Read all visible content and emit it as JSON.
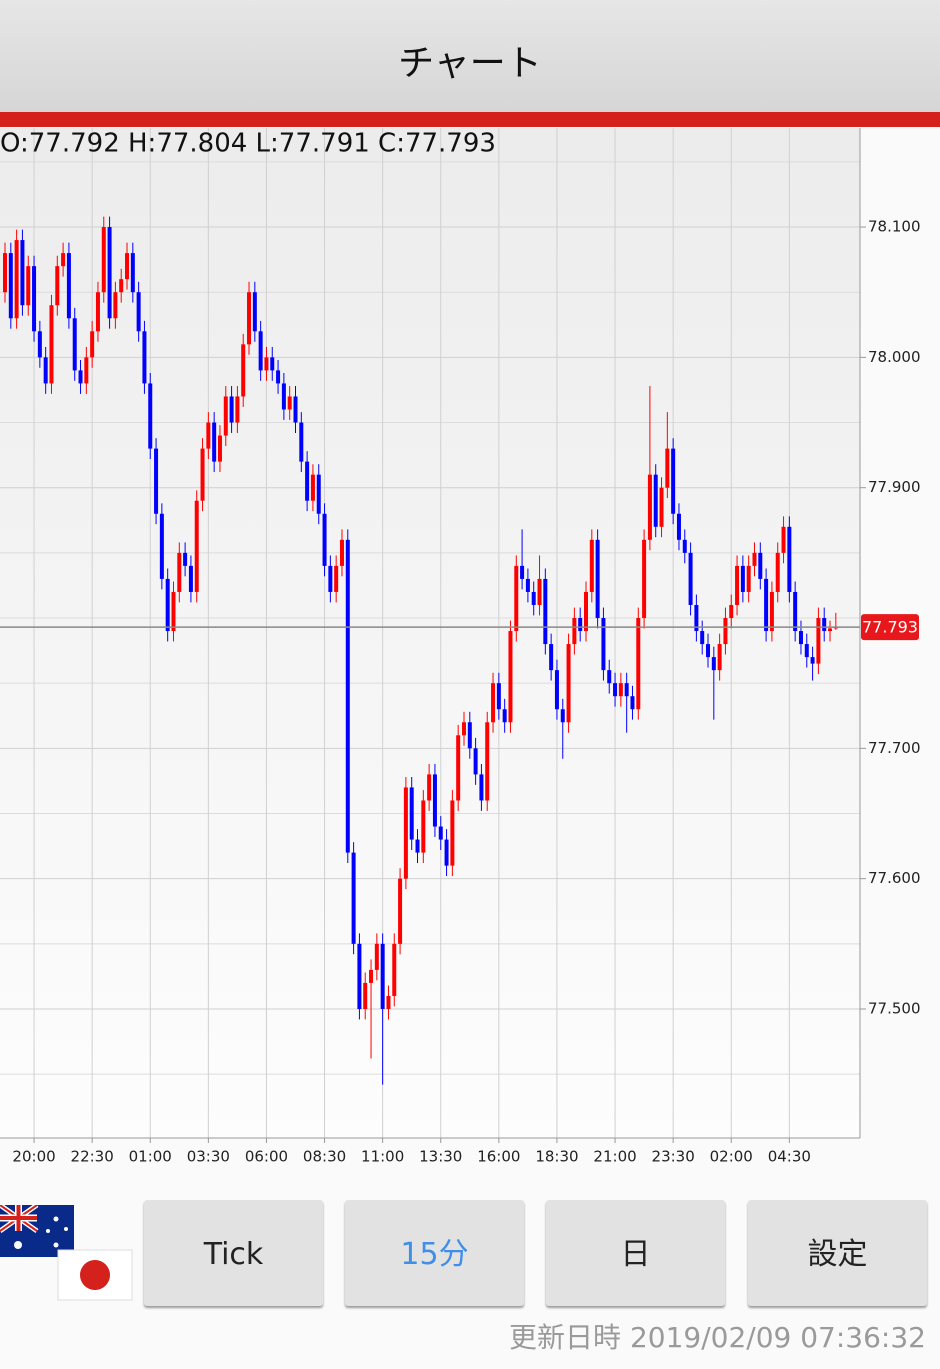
{
  "header": {
    "title": "チャート"
  },
  "chart_data": {
    "type": "candlestick",
    "ohlc_text": "O:77.792 H:77.804 L:77.791 C:77.793",
    "categories": [
      null,
      null,
      null,
      null,
      null,
      "20:00",
      null,
      null,
      null,
      null,
      null,
      null,
      null,
      null,
      null,
      "22:30",
      null,
      null,
      null,
      null,
      null,
      null,
      null,
      null,
      null,
      "01:00",
      null,
      null,
      null,
      null,
      null,
      null,
      null,
      null,
      null,
      "03:30",
      null,
      null,
      null,
      null,
      null,
      null,
      null,
      null,
      null,
      "06:00",
      null,
      null,
      null,
      null,
      null,
      null,
      null,
      null,
      null,
      "08:30",
      null,
      null,
      null,
      null,
      null,
      null,
      null,
      null,
      null,
      "11:00",
      null,
      null,
      null,
      null,
      null,
      null,
      null,
      null,
      null,
      "13:30",
      null,
      null,
      null,
      null,
      null,
      null,
      null,
      null,
      null,
      "16:00",
      null,
      null,
      null,
      null,
      null,
      null,
      null,
      null,
      null,
      "18:30",
      null,
      null,
      null,
      null,
      null,
      null,
      null,
      null,
      null,
      "21:00",
      null,
      null,
      null,
      null,
      null,
      null,
      null,
      null,
      null,
      "23:30",
      null,
      null,
      null,
      null,
      null,
      null,
      null,
      null,
      null,
      "02:00",
      null,
      null,
      null,
      null,
      null,
      null,
      null,
      null,
      null,
      "04:30",
      null,
      null,
      null,
      null,
      null,
      null,
      null,
      null
    ],
    "candles": [
      [
        78.05,
        78.088,
        78.042,
        78.08
      ],
      [
        78.08,
        78.088,
        78.022,
        78.03
      ],
      [
        78.03,
        78.098,
        78.022,
        78.09
      ],
      [
        78.09,
        78.098,
        78.032,
        78.04
      ],
      [
        78.04,
        78.078,
        78.032,
        78.07
      ],
      [
        78.07,
        78.078,
        78.012,
        78.02
      ],
      [
        78.02,
        78.028,
        77.992,
        78.0
      ],
      [
        78.0,
        78.008,
        77.972,
        77.98
      ],
      [
        77.98,
        78.048,
        77.972,
        78.04
      ],
      [
        78.04,
        78.078,
        78.032,
        78.07
      ],
      [
        78.07,
        78.088,
        78.062,
        78.08
      ],
      [
        78.08,
        78.088,
        78.022,
        78.03
      ],
      [
        78.03,
        78.038,
        77.982,
        77.99
      ],
      [
        77.99,
        77.998,
        77.972,
        77.98
      ],
      [
        77.98,
        78.008,
        77.972,
        78.0
      ],
      [
        78.0,
        78.028,
        77.992,
        78.02
      ],
      [
        78.02,
        78.058,
        78.012,
        78.05
      ],
      [
        78.05,
        78.108,
        78.042,
        78.1
      ],
      [
        78.1,
        78.108,
        78.022,
        78.03
      ],
      [
        78.03,
        78.058,
        78.022,
        78.05
      ],
      [
        78.05,
        78.068,
        78.042,
        78.06
      ],
      [
        78.06,
        78.088,
        78.052,
        78.08
      ],
      [
        78.08,
        78.088,
        78.042,
        78.05
      ],
      [
        78.05,
        78.058,
        78.012,
        78.02
      ],
      [
        78.02,
        78.028,
        77.972,
        77.98
      ],
      [
        77.98,
        77.988,
        77.922,
        77.93
      ],
      [
        77.93,
        77.938,
        77.872,
        77.88
      ],
      [
        77.88,
        77.888,
        77.822,
        77.83
      ],
      [
        77.83,
        77.838,
        77.782,
        77.79
      ],
      [
        77.79,
        77.828,
        77.782,
        77.82
      ],
      [
        77.82,
        77.858,
        77.812,
        77.85
      ],
      [
        77.85,
        77.858,
        77.832,
        77.84
      ],
      [
        77.84,
        77.848,
        77.812,
        77.82
      ],
      [
        77.82,
        77.898,
        77.812,
        77.89
      ],
      [
        77.89,
        77.938,
        77.882,
        77.93
      ],
      [
        77.93,
        77.958,
        77.922,
        77.95
      ],
      [
        77.95,
        77.958,
        77.912,
        77.92
      ],
      [
        77.92,
        77.948,
        77.912,
        77.94
      ],
      [
        77.94,
        77.978,
        77.932,
        77.97
      ],
      [
        77.97,
        77.978,
        77.942,
        77.95
      ],
      [
        77.95,
        77.978,
        77.942,
        77.97
      ],
      [
        77.97,
        78.018,
        77.962,
        78.01
      ],
      [
        78.01,
        78.058,
        78.002,
        78.05
      ],
      [
        78.05,
        78.058,
        78.012,
        78.02
      ],
      [
        78.02,
        78.028,
        77.982,
        77.99
      ],
      [
        77.99,
        78.008,
        77.982,
        78.0
      ],
      [
        78.0,
        78.008,
        77.982,
        77.99
      ],
      [
        77.99,
        77.998,
        77.972,
        77.98
      ],
      [
        77.98,
        77.988,
        77.952,
        77.96
      ],
      [
        77.96,
        77.978,
        77.952,
        77.97
      ],
      [
        77.97,
        77.978,
        77.942,
        77.95
      ],
      [
        77.95,
        77.958,
        77.912,
        77.92
      ],
      [
        77.92,
        77.928,
        77.882,
        77.89
      ],
      [
        77.89,
        77.918,
        77.882,
        77.91
      ],
      [
        77.91,
        77.918,
        77.872,
        77.88
      ],
      [
        77.88,
        77.888,
        77.832,
        77.84
      ],
      [
        77.84,
        77.848,
        77.812,
        77.82
      ],
      [
        77.82,
        77.848,
        77.812,
        77.84
      ],
      [
        77.84,
        77.868,
        77.832,
        77.86
      ],
      [
        77.86,
        77.868,
        77.612,
        77.62
      ],
      [
        77.62,
        77.628,
        77.542,
        77.55
      ],
      [
        77.55,
        77.558,
        77.492,
        77.5
      ],
      [
        77.5,
        77.528,
        77.492,
        77.52
      ],
      [
        77.52,
        77.538,
        77.462,
        77.53
      ],
      [
        77.53,
        77.558,
        77.522,
        77.55
      ],
      [
        77.55,
        77.558,
        77.442,
        77.5
      ],
      [
        77.5,
        77.518,
        77.492,
        77.51
      ],
      [
        77.51,
        77.558,
        77.502,
        77.55
      ],
      [
        77.55,
        77.608,
        77.542,
        77.6
      ],
      [
        77.6,
        77.678,
        77.592,
        77.67
      ],
      [
        77.67,
        77.678,
        77.622,
        77.63
      ],
      [
        77.63,
        77.638,
        77.612,
        77.62
      ],
      [
        77.62,
        77.668,
        77.612,
        77.66
      ],
      [
        77.66,
        77.688,
        77.652,
        77.68
      ],
      [
        77.68,
        77.688,
        77.632,
        77.64
      ],
      [
        77.64,
        77.648,
        77.622,
        77.63
      ],
      [
        77.63,
        77.638,
        77.602,
        77.61
      ],
      [
        77.61,
        77.668,
        77.602,
        77.66
      ],
      [
        77.66,
        77.718,
        77.652,
        77.71
      ],
      [
        77.71,
        77.728,
        77.702,
        77.72
      ],
      [
        77.72,
        77.728,
        77.692,
        77.7
      ],
      [
        77.7,
        77.708,
        77.672,
        77.68
      ],
      [
        77.68,
        77.688,
        77.652,
        77.66
      ],
      [
        77.66,
        77.728,
        77.652,
        77.72
      ],
      [
        77.72,
        77.758,
        77.712,
        77.75
      ],
      [
        77.75,
        77.758,
        77.722,
        77.73
      ],
      [
        77.73,
        77.738,
        77.712,
        77.72
      ],
      [
        77.72,
        77.798,
        77.712,
        77.79
      ],
      [
        77.79,
        77.848,
        77.782,
        77.84
      ],
      [
        77.84,
        77.868,
        77.822,
        77.83
      ],
      [
        77.83,
        77.838,
        77.812,
        77.82
      ],
      [
        77.82,
        77.828,
        77.802,
        77.81
      ],
      [
        77.81,
        77.848,
        77.802,
        77.83
      ],
      [
        77.83,
        77.838,
        77.772,
        77.78
      ],
      [
        77.78,
        77.788,
        77.752,
        77.76
      ],
      [
        77.76,
        77.768,
        77.722,
        77.73
      ],
      [
        77.73,
        77.738,
        77.692,
        77.72
      ],
      [
        77.72,
        77.788,
        77.712,
        77.78
      ],
      [
        77.78,
        77.808,
        77.772,
        77.8
      ],
      [
        77.8,
        77.808,
        77.782,
        77.79
      ],
      [
        77.79,
        77.828,
        77.782,
        77.82
      ],
      [
        77.82,
        77.868,
        77.812,
        77.86
      ],
      [
        77.86,
        77.868,
        77.792,
        77.8
      ],
      [
        77.8,
        77.808,
        77.752,
        77.76
      ],
      [
        77.76,
        77.768,
        77.742,
        77.75
      ],
      [
        77.75,
        77.758,
        77.732,
        77.74
      ],
      [
        77.74,
        77.758,
        77.732,
        77.75
      ],
      [
        77.75,
        77.758,
        77.712,
        77.74
      ],
      [
        77.74,
        77.748,
        77.722,
        77.73
      ],
      [
        77.73,
        77.808,
        77.722,
        77.8
      ],
      [
        77.8,
        77.868,
        77.792,
        77.86
      ],
      [
        77.86,
        77.978,
        77.852,
        77.91
      ],
      [
        77.91,
        77.918,
        77.862,
        77.87
      ],
      [
        77.87,
        77.908,
        77.862,
        77.9
      ],
      [
        77.9,
        77.958,
        77.892,
        77.93
      ],
      [
        77.93,
        77.938,
        77.872,
        77.88
      ],
      [
        77.88,
        77.888,
        77.852,
        77.86
      ],
      [
        77.86,
        77.868,
        77.842,
        77.85
      ],
      [
        77.85,
        77.858,
        77.802,
        77.81
      ],
      [
        77.81,
        77.818,
        77.782,
        77.79
      ],
      [
        77.79,
        77.798,
        77.772,
        77.78
      ],
      [
        77.78,
        77.788,
        77.762,
        77.77
      ],
      [
        77.77,
        77.778,
        77.722,
        77.76
      ],
      [
        77.76,
        77.788,
        77.752,
        77.78
      ],
      [
        77.78,
        77.808,
        77.772,
        77.8
      ],
      [
        77.8,
        77.818,
        77.792,
        77.81
      ],
      [
        77.81,
        77.848,
        77.802,
        77.84
      ],
      [
        77.84,
        77.848,
        77.812,
        77.82
      ],
      [
        77.82,
        77.848,
        77.812,
        77.84
      ],
      [
        77.84,
        77.858,
        77.832,
        77.85
      ],
      [
        77.85,
        77.858,
        77.822,
        77.83
      ],
      [
        77.83,
        77.838,
        77.782,
        77.79
      ],
      [
        77.79,
        77.828,
        77.782,
        77.82
      ],
      [
        77.82,
        77.858,
        77.812,
        77.85
      ],
      [
        77.85,
        77.878,
        77.842,
        77.87
      ],
      [
        77.87,
        77.878,
        77.812,
        77.82
      ],
      [
        77.82,
        77.828,
        77.782,
        77.79
      ],
      [
        77.79,
        77.798,
        77.772,
        77.78
      ],
      [
        77.78,
        77.788,
        77.762,
        77.77
      ],
      [
        77.77,
        77.778,
        77.752,
        77.765
      ],
      [
        77.765,
        77.808,
        77.757,
        77.8
      ],
      [
        77.8,
        77.808,
        77.782,
        77.79
      ],
      [
        77.79,
        77.798,
        77.782,
        77.792
      ],
      [
        77.792,
        77.804,
        77.791,
        77.793
      ]
    ],
    "up_color": "#ff0000",
    "down_color": "#0000ff",
    "ylim": [
      77.401,
      78.176
    ],
    "yticks": [
      {
        "value": 78.1,
        "label": "78.100"
      },
      {
        "value": 78.0,
        "label": "78.000"
      },
      {
        "value": 77.9,
        "label": "77.900"
      },
      {
        "value": 77.7,
        "label": "77.700"
      },
      {
        "value": 77.6,
        "label": "77.600"
      },
      {
        "value": 77.5,
        "label": "77.500"
      }
    ],
    "minor_grid": [
      78.15,
      78.05,
      77.95,
      77.85,
      77.8,
      77.75,
      77.65,
      77.55,
      77.45
    ],
    "grid": true,
    "current_price": 77.793,
    "current_price_color": "#e8171b"
  },
  "buttons": [
    {
      "label": "Tick"
    },
    {
      "label": "15分",
      "selected": true
    },
    {
      "label": "日"
    },
    {
      "label": "設定"
    }
  ],
  "footer": {
    "updated": "更新日時 2019/02/09 07:36:32"
  }
}
